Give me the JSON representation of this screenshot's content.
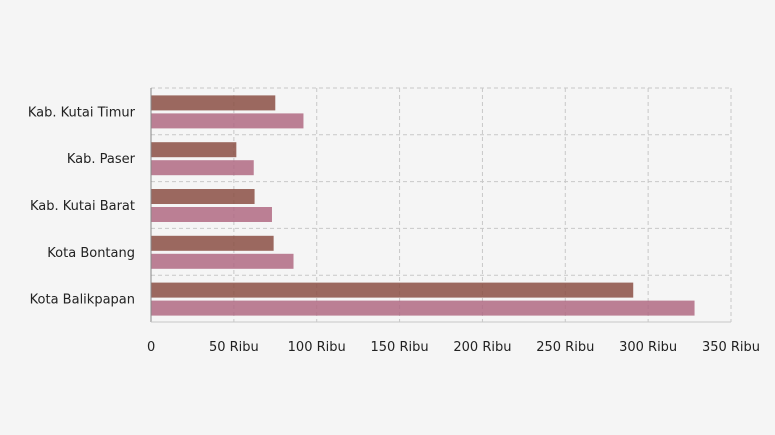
{
  "chart_data": {
    "type": "bar",
    "orientation": "horizontal",
    "categories": [
      "Kota Balikpapan",
      "Kota Bontang",
      "Kab. Kutai Barat",
      "Kab. Paser",
      "Kab. Kutai Timur"
    ],
    "series": [
      {
        "values": [
          291000,
          74000,
          62500,
          51500,
          75000
        ],
        "color": "#8b4f44"
      },
      {
        "values": [
          328000,
          86000,
          73000,
          62000,
          92000
        ],
        "color": "#b06a82"
      }
    ],
    "xlim": [
      0,
      350000
    ],
    "xticks": [
      0,
      50000,
      100000,
      150000,
      200000,
      250000,
      300000,
      350000
    ],
    "xtick_labels": [
      "0",
      "50 Ribu",
      "100 Ribu",
      "150 Ribu",
      "200 Ribu",
      "250 Ribu",
      "300 Ribu",
      "350 Ribu"
    ],
    "grid": true,
    "legend": "none"
  }
}
